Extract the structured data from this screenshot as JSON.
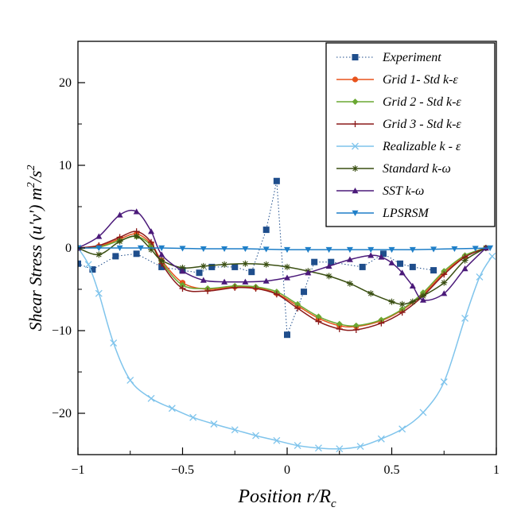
{
  "chart_data": {
    "type": "line",
    "xlabel": "Position r/R",
    "xlabel_sub": "c",
    "ylabel_parts": [
      "Shear Stress (u'v') m",
      "2",
      "/s",
      "2"
    ],
    "xlim": [
      -1,
      1
    ],
    "ylim": [
      -25,
      25
    ],
    "x_ticks": [
      -1,
      -0.5,
      0,
      0.5,
      1
    ],
    "x_tick_labels": [
      "−1",
      "−0.5",
      "0",
      "0.5",
      "1"
    ],
    "y_ticks": [
      -20,
      -10,
      0,
      10,
      20
    ],
    "y_tick_labels": [
      "−20",
      "−10",
      "0",
      "10",
      "20"
    ],
    "legend_position": "top-right",
    "series": [
      {
        "name": "Experiment",
        "color": "#1f4e8c",
        "marker": "square",
        "style": "dotted",
        "x": [
          -1.0,
          -0.93,
          -0.82,
          -0.72,
          -0.6,
          -0.5,
          -0.42,
          -0.36,
          -0.25,
          -0.17,
          -0.1,
          -0.05,
          0.0,
          0.08,
          0.13,
          0.21,
          0.36,
          0.46,
          0.54,
          0.6,
          0.7
        ],
        "y": [
          -1.9,
          -2.6,
          -1.0,
          -0.7,
          -2.3,
          -2.7,
          -3.0,
          -2.3,
          -2.3,
          -2.9,
          2.2,
          8.1,
          -10.5,
          -5.3,
          -1.7,
          -1.7,
          -2.3,
          -0.7,
          -1.9,
          -2.3,
          -2.7
        ]
      },
      {
        "name": "Grid 1- Std k-ε",
        "color": "#e8531c",
        "marker": "circle",
        "style": "solid",
        "x": [
          -1.0,
          -0.9,
          -0.8,
          -0.72,
          -0.65,
          -0.6,
          -0.5,
          -0.38,
          -0.25,
          -0.15,
          -0.05,
          0.05,
          0.15,
          0.25,
          0.33,
          0.45,
          0.55,
          0.65,
          0.75,
          0.85,
          0.95
        ],
        "y": [
          0,
          0.2,
          1.1,
          1.7,
          0.5,
          -1.5,
          -4.2,
          -5.0,
          -4.7,
          -4.8,
          -5.5,
          -7.0,
          -8.5,
          -9.4,
          -9.5,
          -8.8,
          -7.5,
          -5.6,
          -3.0,
          -1.0,
          0
        ]
      },
      {
        "name": "Grid 2 - Std k-ε",
        "color": "#6aa832",
        "marker": "diamond",
        "style": "solid",
        "x": [
          -1.0,
          -0.9,
          -0.8,
          -0.72,
          -0.65,
          -0.6,
          -0.5,
          -0.38,
          -0.25,
          -0.15,
          -0.05,
          0.05,
          0.15,
          0.25,
          0.33,
          0.45,
          0.55,
          0.65,
          0.75,
          0.85,
          0.95
        ],
        "y": [
          0,
          0.1,
          0.9,
          1.4,
          0.3,
          -1.7,
          -4.5,
          -4.9,
          -4.6,
          -4.7,
          -5.3,
          -6.8,
          -8.3,
          -9.2,
          -9.4,
          -8.7,
          -7.4,
          -5.4,
          -2.8,
          -0.9,
          0
        ]
      },
      {
        "name": "Grid 3 - Std k-ε",
        "color": "#8b1a1a",
        "marker": "plus",
        "style": "solid",
        "x": [
          -1.0,
          -0.9,
          -0.8,
          -0.72,
          -0.65,
          -0.6,
          -0.5,
          -0.38,
          -0.25,
          -0.15,
          -0.05,
          0.05,
          0.15,
          0.25,
          0.33,
          0.45,
          0.55,
          0.65,
          0.75,
          0.85,
          0.95
        ],
        "y": [
          0,
          0.3,
          1.3,
          2.0,
          0.7,
          -1.9,
          -4.9,
          -5.2,
          -4.8,
          -4.9,
          -5.6,
          -7.3,
          -8.9,
          -9.8,
          -9.9,
          -9.1,
          -7.8,
          -5.8,
          -3.2,
          -1.1,
          0
        ]
      },
      {
        "name": "Realizable k - ε",
        "color": "#7fc4ec",
        "marker": "x",
        "style": "solid",
        "x": [
          -1.0,
          -0.95,
          -0.9,
          -0.83,
          -0.75,
          -0.65,
          -0.55,
          -0.45,
          -0.35,
          -0.25,
          -0.15,
          -0.05,
          0.05,
          0.15,
          0.25,
          0.35,
          0.45,
          0.55,
          0.65,
          0.75,
          0.85,
          0.92,
          0.98
        ],
        "y": [
          0,
          -2.0,
          -5.5,
          -11.5,
          -16.0,
          -18.2,
          -19.4,
          -20.5,
          -21.3,
          -22.0,
          -22.7,
          -23.3,
          -23.9,
          -24.2,
          -24.3,
          -24.0,
          -23.1,
          -21.9,
          -19.9,
          -16.2,
          -8.5,
          -3.5,
          -1.0
        ]
      },
      {
        "name": "Standard k-ω",
        "color": "#3a4f12",
        "marker": "asterisk",
        "style": "solid",
        "x": [
          -1.0,
          -0.9,
          -0.8,
          -0.72,
          -0.65,
          -0.6,
          -0.5,
          -0.4,
          -0.3,
          -0.2,
          -0.1,
          0.0,
          0.1,
          0.2,
          0.3,
          0.4,
          0.5,
          0.55,
          0.6,
          0.65,
          0.75,
          0.85,
          0.95
        ],
        "y": [
          0,
          -0.8,
          0.8,
          1.4,
          -0.2,
          -1.5,
          -2.4,
          -2.2,
          -2.0,
          -1.9,
          -2.0,
          -2.3,
          -2.8,
          -3.4,
          -4.3,
          -5.5,
          -6.5,
          -6.8,
          -6.5,
          -5.8,
          -4.2,
          -1.5,
          0
        ]
      },
      {
        "name": "SST k-ω",
        "color": "#4b1a7a",
        "marker": "triangle-up",
        "style": "solid",
        "x": [
          -1.0,
          -0.9,
          -0.8,
          -0.72,
          -0.65,
          -0.6,
          -0.5,
          -0.4,
          -0.3,
          -0.2,
          -0.1,
          0.0,
          0.1,
          0.2,
          0.3,
          0.4,
          0.45,
          0.5,
          0.55,
          0.6,
          0.65,
          0.75,
          0.85,
          0.95
        ],
        "y": [
          0,
          1.4,
          4.0,
          4.4,
          2.0,
          -0.8,
          -2.8,
          -3.9,
          -4.1,
          -4.1,
          -4.0,
          -3.6,
          -3.0,
          -2.2,
          -1.4,
          -0.9,
          -1.1,
          -1.8,
          -3.0,
          -4.6,
          -6.3,
          -5.5,
          -2.5,
          0
        ]
      },
      {
        "name": "LPSRSM",
        "color": "#1f7fc8",
        "marker": "triangle-down",
        "style": "solid",
        "x": [
          -1.0,
          -0.9,
          -0.8,
          -0.7,
          -0.6,
          -0.5,
          -0.4,
          -0.3,
          -0.2,
          -0.1,
          0.0,
          0.1,
          0.2,
          0.3,
          0.4,
          0.5,
          0.6,
          0.7,
          0.8,
          0.9,
          0.97
        ],
        "y": [
          0,
          0,
          0,
          0,
          0,
          -0.05,
          -0.1,
          -0.1,
          -0.1,
          -0.15,
          -0.2,
          -0.2,
          -0.2,
          -0.2,
          -0.2,
          -0.2,
          -0.2,
          -0.15,
          -0.1,
          -0.05,
          0
        ]
      }
    ]
  }
}
